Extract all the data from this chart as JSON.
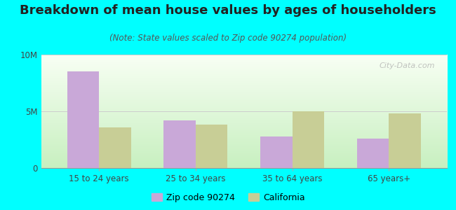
{
  "title": "Breakdown of mean house values by ages of householders",
  "subtitle": "(Note: State values scaled to Zip code 90274 population)",
  "categories": [
    "15 to 24 years",
    "25 to 34 years",
    "35 to 64 years",
    "65 years+"
  ],
  "zip_values": [
    8500000,
    4200000,
    2800000,
    2600000
  ],
  "ca_values": [
    3600000,
    3800000,
    5000000,
    4800000
  ],
  "zip_color": "#c9a8d8",
  "ca_color": "#c8ce96",
  "ylim": [
    0,
    10000000
  ],
  "yticks": [
    0,
    5000000,
    10000000
  ],
  "ytick_labels": [
    "0",
    "5M",
    "10M"
  ],
  "bg_bottom_left": "#c8f0c0",
  "bg_top_right": "#f8fff4",
  "outer_background": "#00ffff",
  "grid_color": "#cccccc",
  "title_fontsize": 13,
  "subtitle_fontsize": 8.5,
  "tick_fontsize": 8.5,
  "legend_label_zip": "Zip code 90274",
  "legend_label_ca": "California",
  "watermark_text": "City-Data.com"
}
